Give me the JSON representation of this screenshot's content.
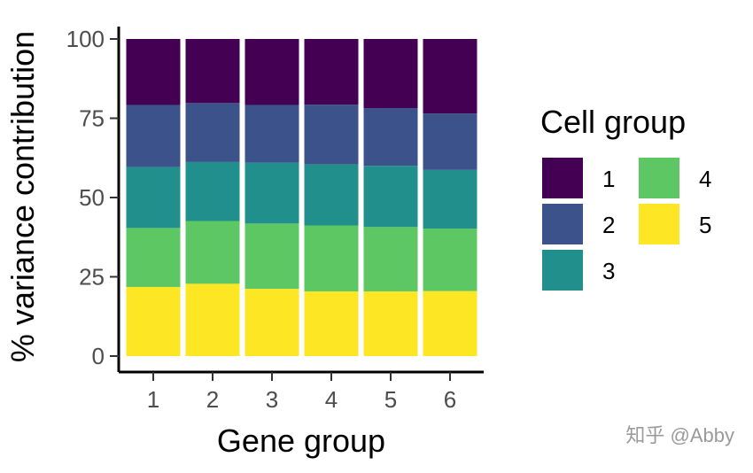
{
  "chart_data": {
    "type": "bar",
    "stacked": true,
    "xlabel": "Gene group",
    "ylabel": "% variance contribution",
    "categories": [
      "1",
      "2",
      "3",
      "4",
      "5",
      "6"
    ],
    "ylim": [
      0,
      100
    ],
    "yticks": [
      0,
      25,
      50,
      75,
      100
    ],
    "grid": false,
    "legend": {
      "title": "Cell group",
      "placement": "right",
      "columns": 2
    },
    "series": [
      {
        "name": "1",
        "color": "#440154",
        "values": [
          20.8,
          20.2,
          20.8,
          20.7,
          21.8,
          23.5
        ]
      },
      {
        "name": "2",
        "color": "#3B528B",
        "values": [
          19.6,
          18.6,
          18.2,
          18.8,
          18.2,
          17.8
        ]
      },
      {
        "name": "3",
        "color": "#21908C",
        "values": [
          19.2,
          18.6,
          19.2,
          19.3,
          19.3,
          18.5
        ]
      },
      {
        "name": "4",
        "color": "#5DC863",
        "values": [
          18.6,
          19.8,
          20.6,
          20.8,
          20.3,
          19.7
        ]
      },
      {
        "name": "5",
        "color": "#FDE725",
        "values": [
          21.8,
          22.8,
          21.2,
          20.4,
          20.4,
          20.5
        ]
      }
    ]
  },
  "watermark": "知乎 @Abby"
}
